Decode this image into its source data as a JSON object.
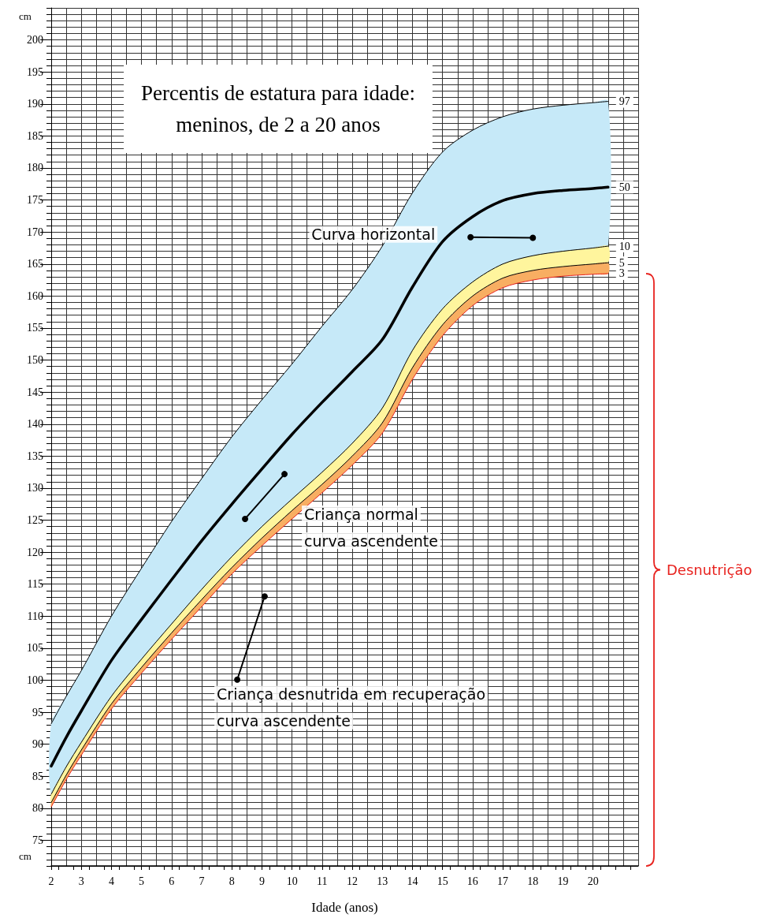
{
  "chart_data": {
    "type": "line",
    "title": "Percentis de estatura para idade:\nmeninos, de 2 a 20 anos",
    "xlabel": "Idade (anos)",
    "ylabel": "cm",
    "x": [
      2,
      2.5,
      3,
      4,
      5,
      6,
      7,
      8,
      9,
      10,
      11,
      12,
      13,
      14,
      15,
      16,
      17,
      18,
      19,
      20,
      20.5
    ],
    "series": [
      {
        "name": "97",
        "type": "area",
        "color": "#c6e9f8",
        "values": [
          93.2,
          97.5,
          101.5,
          110.0,
          117.5,
          124.8,
          131.5,
          138.0,
          143.8,
          149.4,
          155.3,
          161.0,
          167.8,
          176.1,
          182.5,
          185.9,
          188.0,
          189.2,
          189.8,
          190.2,
          190.4
        ]
      },
      {
        "name": "50",
        "type": "line",
        "color": "#000000",
        "values": [
          86.6,
          91.1,
          95.2,
          103.1,
          109.5,
          115.7,
          121.8,
          127.5,
          133.0,
          138.4,
          143.4,
          148.2,
          153.2,
          161.4,
          168.5,
          172.4,
          174.9,
          176.0,
          176.5,
          176.8,
          177.0
        ]
      },
      {
        "name": "10",
        "type": "area",
        "color": "#fff59d",
        "values": [
          82.2,
          86.5,
          90.3,
          97.5,
          103.3,
          108.8,
          114.2,
          119.3,
          124.0,
          128.3,
          132.5,
          137.0,
          142.5,
          151.5,
          158.0,
          162.2,
          165.0,
          166.3,
          167.0,
          167.5,
          167.8
        ]
      },
      {
        "name": "5",
        "type": "area",
        "color": "#f8ae62",
        "values": [
          80.9,
          85.2,
          89.1,
          96.3,
          102.0,
          107.4,
          112.6,
          117.6,
          122.2,
          126.5,
          130.6,
          135.0,
          140.2,
          148.8,
          155.5,
          160.0,
          162.8,
          164.0,
          164.6,
          165.0,
          165.2
        ]
      },
      {
        "name": "3",
        "type": "line",
        "color": "#e8231f",
        "values": [
          80.2,
          84.5,
          88.3,
          95.5,
          101.1,
          106.4,
          111.5,
          116.6,
          121.0,
          125.2,
          129.3,
          133.6,
          138.6,
          147.0,
          153.8,
          158.5,
          161.3,
          162.5,
          163.1,
          163.4,
          163.5
        ]
      },
      {
        "color": "#000000",
        "marker": "circle",
        "x": [
          15.93,
          18.0
        ],
        "values": [
          169.2,
          169.1
        ]
      },
      {
        "color": "#000000",
        "marker": "circle",
        "x": [
          8.44,
          9.75
        ],
        "values": [
          125.2,
          132.2
        ]
      },
      {
        "color": "#000000",
        "marker": "circle",
        "x": [
          8.18,
          9.09
        ],
        "values": [
          100.1,
          113.1
        ]
      }
    ],
    "annotations": [
      {
        "text": "Curva horizontal",
        "x": 15.93,
        "y": 169.2
      },
      {
        "text": "Criança normal\ncurva ascendente",
        "x": 9.75,
        "y": 132.2
      },
      {
        "text": "Criança desnutrida em recuperação\ncurva ascendente",
        "x": 8.18,
        "y": 100.1
      },
      "Desnutrição"
    ],
    "xlim": [
      2,
      21.5
    ],
    "ylim": [
      71,
      205
    ],
    "xticks": [
      2,
      3,
      4,
      5,
      6,
      7,
      8,
      9,
      10,
      11,
      12,
      13,
      14,
      15,
      16,
      17,
      18,
      19,
      20
    ],
    "yticks": [
      75,
      80,
      85,
      90,
      95,
      100,
      105,
      110,
      115,
      120,
      125,
      130,
      135,
      140,
      145,
      150,
      155,
      160,
      165,
      170,
      175,
      180,
      185,
      190,
      195,
      200
    ],
    "grid": true
  }
}
